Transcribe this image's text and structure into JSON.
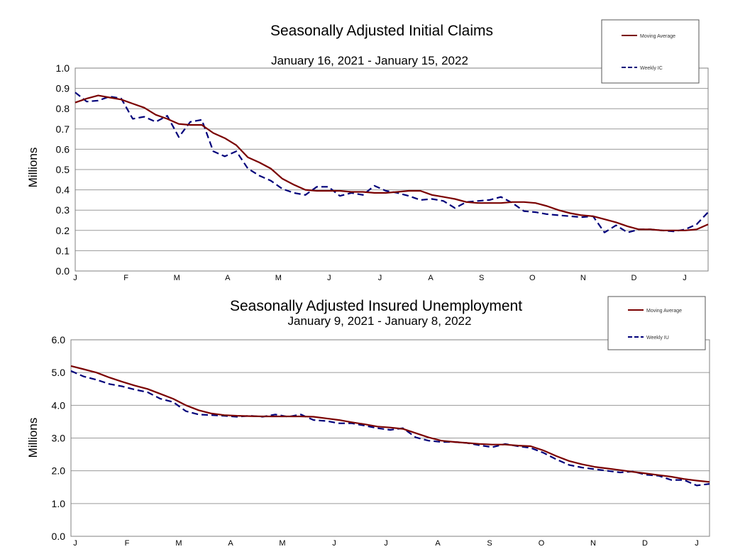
{
  "chart_data": [
    {
      "type": "line",
      "title": "Seasonally Adjusted Initial Claims",
      "subtitle": "January 16, 2021 - January 15, 2022",
      "ylabel": "Millions",
      "xlabel": "",
      "ylim": [
        0,
        1.0
      ],
      "yticks": [
        "0.0",
        "0.1",
        "0.2",
        "0.3",
        "0.4",
        "0.5",
        "0.6",
        "0.7",
        "0.8",
        "0.9",
        "1.0"
      ],
      "xticks": [
        "J",
        "F",
        "M",
        "A",
        "M",
        "J",
        "J",
        "A",
        "S",
        "O",
        "N",
        "D",
        "J"
      ],
      "grid": true,
      "legend_position": "top-right",
      "series": [
        {
          "name": "Moving Average",
          "color": "#7a0000",
          "style": "solid",
          "values": [
            0.83,
            0.85,
            0.865,
            0.855,
            0.845,
            0.825,
            0.805,
            0.77,
            0.75,
            0.725,
            0.72,
            0.72,
            0.68,
            0.655,
            0.62,
            0.56,
            0.535,
            0.505,
            0.455,
            0.425,
            0.4,
            0.395,
            0.395,
            0.395,
            0.39,
            0.39,
            0.385,
            0.385,
            0.39,
            0.395,
            0.395,
            0.375,
            0.365,
            0.355,
            0.34,
            0.335,
            0.335,
            0.335,
            0.34,
            0.34,
            0.335,
            0.32,
            0.3,
            0.285,
            0.275,
            0.27,
            0.255,
            0.24,
            0.22,
            0.205,
            0.205,
            0.2,
            0.2,
            0.2,
            0.205,
            0.23
          ]
        },
        {
          "name": "Weekly IC",
          "color": "#00007a",
          "style": "dashed",
          "values": [
            0.88,
            0.835,
            0.84,
            0.86,
            0.85,
            0.75,
            0.76,
            0.735,
            0.765,
            0.66,
            0.735,
            0.745,
            0.59,
            0.565,
            0.59,
            0.505,
            0.47,
            0.445,
            0.405,
            0.385,
            0.375,
            0.415,
            0.415,
            0.37,
            0.385,
            0.375,
            0.42,
            0.395,
            0.385,
            0.37,
            0.35,
            0.355,
            0.345,
            0.31,
            0.34,
            0.345,
            0.35,
            0.365,
            0.335,
            0.295,
            0.29,
            0.28,
            0.275,
            0.27,
            0.265,
            0.27,
            0.19,
            0.225,
            0.19,
            0.205,
            0.205,
            0.2,
            0.195,
            0.205,
            0.23,
            0.29
          ]
        }
      ]
    },
    {
      "type": "line",
      "title": "Seasonally Adjusted Insured Unemployment",
      "subtitle": "January 9, 2021 - January 8, 2022",
      "ylabel": "Millions",
      "xlabel": "",
      "ylim": [
        0,
        6.0
      ],
      "yticks": [
        "0.0",
        "1.0",
        "2.0",
        "3.0",
        "4.0",
        "5.0",
        "6.0"
      ],
      "xticks": [
        "J",
        "F",
        "M",
        "A",
        "M",
        "J",
        "J",
        "A",
        "S",
        "O",
        "N",
        "D",
        "J"
      ],
      "grid": true,
      "legend_position": "top-right",
      "series": [
        {
          "name": "Moving Average",
          "color": "#7a0000",
          "style": "solid",
          "values": [
            5.2,
            5.1,
            5.0,
            4.85,
            4.72,
            4.6,
            4.5,
            4.35,
            4.2,
            4.0,
            3.85,
            3.75,
            3.7,
            3.68,
            3.67,
            3.66,
            3.66,
            3.66,
            3.66,
            3.65,
            3.6,
            3.55,
            3.48,
            3.42,
            3.35,
            3.32,
            3.28,
            3.15,
            3.02,
            2.92,
            2.88,
            2.85,
            2.82,
            2.8,
            2.8,
            2.77,
            2.75,
            2.62,
            2.45,
            2.3,
            2.2,
            2.12,
            2.07,
            2.02,
            1.97,
            1.92,
            1.87,
            1.82,
            1.75,
            1.7,
            1.66
          ]
        },
        {
          "name": "Weekly IU",
          "color": "#00007a",
          "style": "dashed",
          "values": [
            5.05,
            4.88,
            4.78,
            4.65,
            4.58,
            4.48,
            4.4,
            4.2,
            4.1,
            3.82,
            3.72,
            3.7,
            3.68,
            3.65,
            3.68,
            3.65,
            3.72,
            3.65,
            3.72,
            3.55,
            3.52,
            3.45,
            3.45,
            3.38,
            3.3,
            3.25,
            3.3,
            3.02,
            2.92,
            2.88,
            2.88,
            2.85,
            2.78,
            2.72,
            2.82,
            2.75,
            2.7,
            2.55,
            2.35,
            2.18,
            2.1,
            2.05,
            2.0,
            1.95,
            1.98,
            1.88,
            1.85,
            1.72,
            1.72,
            1.55,
            1.6
          ]
        }
      ]
    }
  ]
}
